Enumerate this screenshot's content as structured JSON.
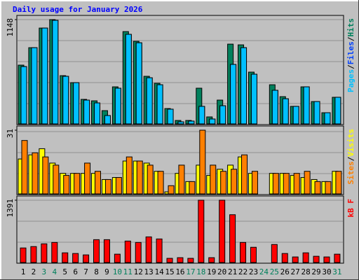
{
  "chart_data": [
    {
      "type": "bar",
      "title": "Daily usage for January 2026",
      "categories": [
        "1",
        "2",
        "3",
        "4",
        "5",
        "6",
        "7",
        "8",
        "9",
        "10",
        "11",
        "12",
        "13",
        "14",
        "15",
        "16",
        "17",
        "18",
        "19",
        "20",
        "21",
        "22",
        "23",
        "24",
        "25",
        "26",
        "27",
        "28",
        "29",
        "30",
        "31"
      ],
      "category_colors": [
        "#000000",
        "#000000",
        "#00805c",
        "#00805c",
        "#000000",
        "#000000",
        "#000000",
        "#000000",
        "#000000",
        "#00805c",
        "#00805c",
        "#000000",
        "#000000",
        "#000000",
        "#000000",
        "#000000",
        "#00805c",
        "#00805c",
        "#000000",
        "#000000",
        "#000000",
        "#000000",
        "#000000",
        "#00805c",
        "#00805c",
        "#000000",
        "#000000",
        "#000000",
        "#000000",
        "#000000",
        "#00805c"
      ],
      "legend_separator": "/",
      "ylim": [
        0,
        1148
      ],
      "yticks": [
        1148
      ],
      "series": [
        {
          "name": "Hits",
          "color": "#00805c",
          "values": [
            647,
            839,
            1055,
            1148,
            531,
            454,
            270,
            254,
            146,
            408,
            1016,
            909,
            524,
            447,
            169,
            38,
            38,
            393,
            77,
            262,
            878,
            870,
            570,
            0,
            431,
            300,
            193,
            408,
            246,
            123,
            293
          ]
        },
        {
          "name": "Files",
          "color": "#0040ff",
          "values": [
            631,
            839,
            1055,
            1140,
            524,
            454,
            262,
            231,
            92,
            393,
            986,
            893,
            508,
            431,
            162,
            23,
            31,
            193,
            54,
            200,
            655,
            839,
            547,
            0,
            370,
            277,
            193,
            408,
            246,
            123,
            293
          ]
        },
        {
          "name": "Pages",
          "color": "#00c0ff",
          "values": [
            631,
            839,
            1055,
            1140,
            524,
            454,
            262,
            231,
            92,
            393,
            986,
            893,
            508,
            431,
            162,
            23,
            31,
            193,
            54,
            200,
            655,
            839,
            547,
            0,
            370,
            277,
            193,
            408,
            246,
            123,
            293
          ]
        }
      ]
    },
    {
      "type": "bar",
      "legend_separator": "/",
      "ylim": [
        0,
        31
      ],
      "yticks": [
        31
      ],
      "series": [
        {
          "name": "Visits",
          "color": "#ffff00",
          "values": [
            17,
            19,
            22,
            15,
            10,
            10,
            10,
            10,
            7,
            8,
            16,
            16,
            15,
            11,
            1,
            10,
            6,
            14,
            9,
            12,
            14,
            18,
            10,
            0,
            10,
            10,
            9,
            8,
            7,
            6,
            11
          ]
        },
        {
          "name": "Sites",
          "color": "#ff8000",
          "values": [
            26,
            20,
            18,
            14,
            9,
            10,
            15,
            11,
            7,
            8,
            18,
            16,
            14,
            11,
            4,
            14,
            6,
            31,
            14,
            11,
            12,
            19,
            11,
            0,
            10,
            10,
            10,
            11,
            6,
            6,
            11
          ]
        }
      ]
    },
    {
      "type": "bar",
      "ylim": [
        0,
        1391
      ],
      "yticks": [
        1391
      ],
      "series": [
        {
          "name": "kB F",
          "color": "#ff0000",
          "values": [
            325,
            356,
            417,
            448,
            216,
            201,
            170,
            510,
            510,
            186,
            479,
            448,
            572,
            526,
            93,
            108,
            93,
            1391,
            108,
            1391,
            1067,
            448,
            340,
            0,
            402,
            201,
            124,
            216,
            139,
            124,
            186
          ]
        }
      ]
    }
  ]
}
